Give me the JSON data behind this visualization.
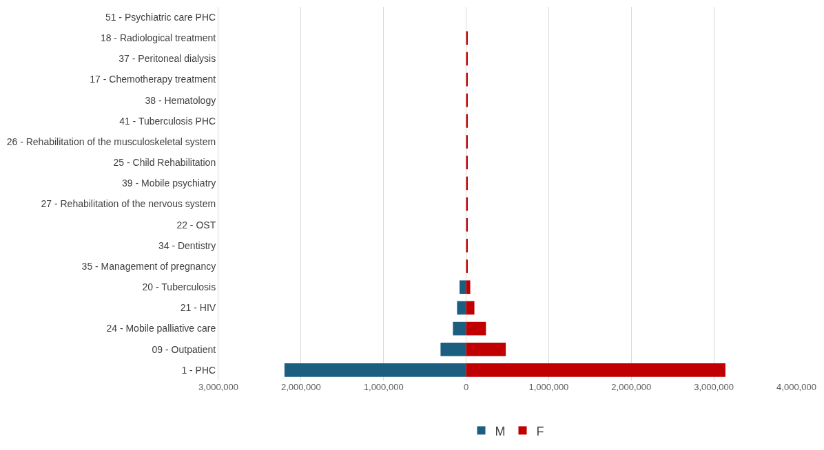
{
  "chart_data": {
    "type": "bar",
    "orientation": "horizontal",
    "stacked": true,
    "categories": [
      "51 - Psychiatric care PHC",
      "18 - Radiological treatment",
      "37 - Peritoneal dialysis",
      "17 - Chemotherapy treatment",
      "38 - Hematology",
      "41 - Tuberculosis PHC",
      "26 - Rehabilitation of the musculoskeletal system",
      "25 - Child Rehabilitation",
      "39 - Mobile psychiatry",
      "27 - Rehabilitation of the nervous system",
      "22 - OST",
      "34 - Dentistry",
      "35 - Management of pregnancy",
      "20 - Tuberculosis",
      "21 - HIV",
      "24 - Mobile palliative care",
      "09 - Outpatient",
      "1 - PHC"
    ],
    "series": [
      {
        "name": "M",
        "color": "#1b5e80",
        "values": [
          0,
          0,
          0,
          0,
          0,
          0,
          0,
          0,
          0,
          0,
          0,
          0,
          0,
          -80000,
          -110000,
          -160000,
          -310000,
          -2200000
        ]
      },
      {
        "name": "F",
        "color": "#c00000",
        "values": [
          0,
          20000,
          20000,
          20000,
          20000,
          20000,
          20000,
          20000,
          20000,
          20000,
          20000,
          20000,
          20000,
          50000,
          100000,
          240000,
          480000,
          3140000
        ]
      }
    ],
    "xlim": [
      -3000000,
      4000000
    ],
    "xticks": [
      {
        "value": -3000000,
        "label": "3,000,000"
      },
      {
        "value": -2000000,
        "label": "2,000,000"
      },
      {
        "value": -1000000,
        "label": "1,000,000"
      },
      0,
      {
        "value": 1000000,
        "label": "1,000,000"
      },
      {
        "value": 2000000,
        "label": "2,000,000"
      },
      {
        "value": 3000000,
        "label": "3,000,000"
      },
      {
        "value": 4000000,
        "label": "4,000,000"
      }
    ],
    "grid": "x",
    "legend": "bottom"
  }
}
